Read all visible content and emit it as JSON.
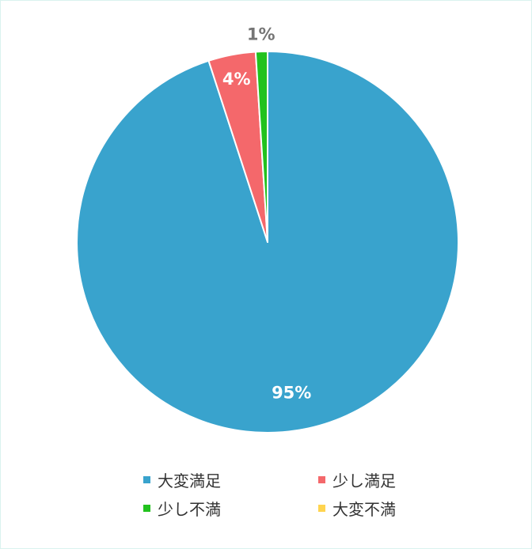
{
  "chart_data": {
    "type": "pie",
    "categories": [
      "大変満足",
      "少し満足",
      "少し不満",
      "大変不満"
    ],
    "values": [
      95,
      4,
      1,
      0
    ],
    "value_labels": [
      "95%",
      "4%",
      "1%",
      ""
    ],
    "colors": [
      "#39a3cd",
      "#f4686b",
      "#22c21e",
      "#ffd44f"
    ],
    "label_colors": [
      "#ffffff",
      "#ffffff",
      "#757575",
      "#757575"
    ],
    "start_angle_deg": 0,
    "direction": "clockwise",
    "legend_position": "bottom",
    "title": ""
  }
}
